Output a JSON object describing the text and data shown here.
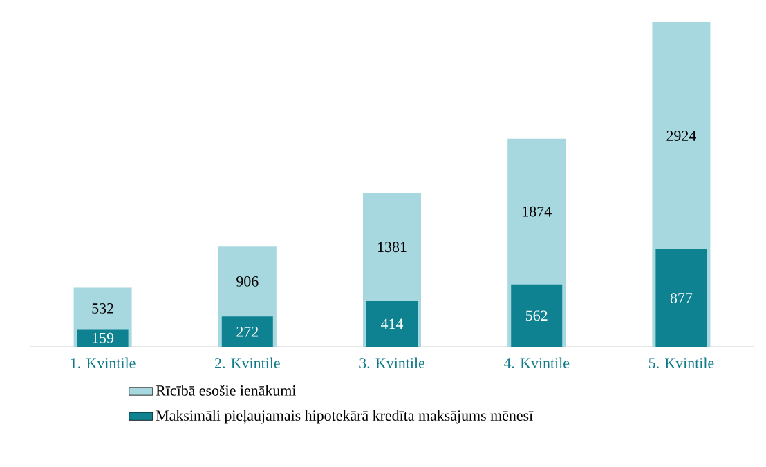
{
  "chart_data": {
    "type": "bar",
    "categories": [
      "1. Kvintile",
      "2. Kvintile",
      "3. Kvintile",
      "4. Kvintile",
      "5. Kvintile"
    ],
    "series": [
      {
        "name": "Rīcībā esošie ienākumi",
        "color": "#a8d8df",
        "values": [
          532,
          906,
          1381,
          1874,
          2924
        ]
      },
      {
        "name": "Maksimāli pieļaujamais hipotekārā kredīta maksājums mēnesī",
        "color": "#0e8290",
        "values": [
          159,
          272,
          414,
          562,
          877
        ]
      }
    ],
    "data_labels": true,
    "legend": "bottom"
  }
}
